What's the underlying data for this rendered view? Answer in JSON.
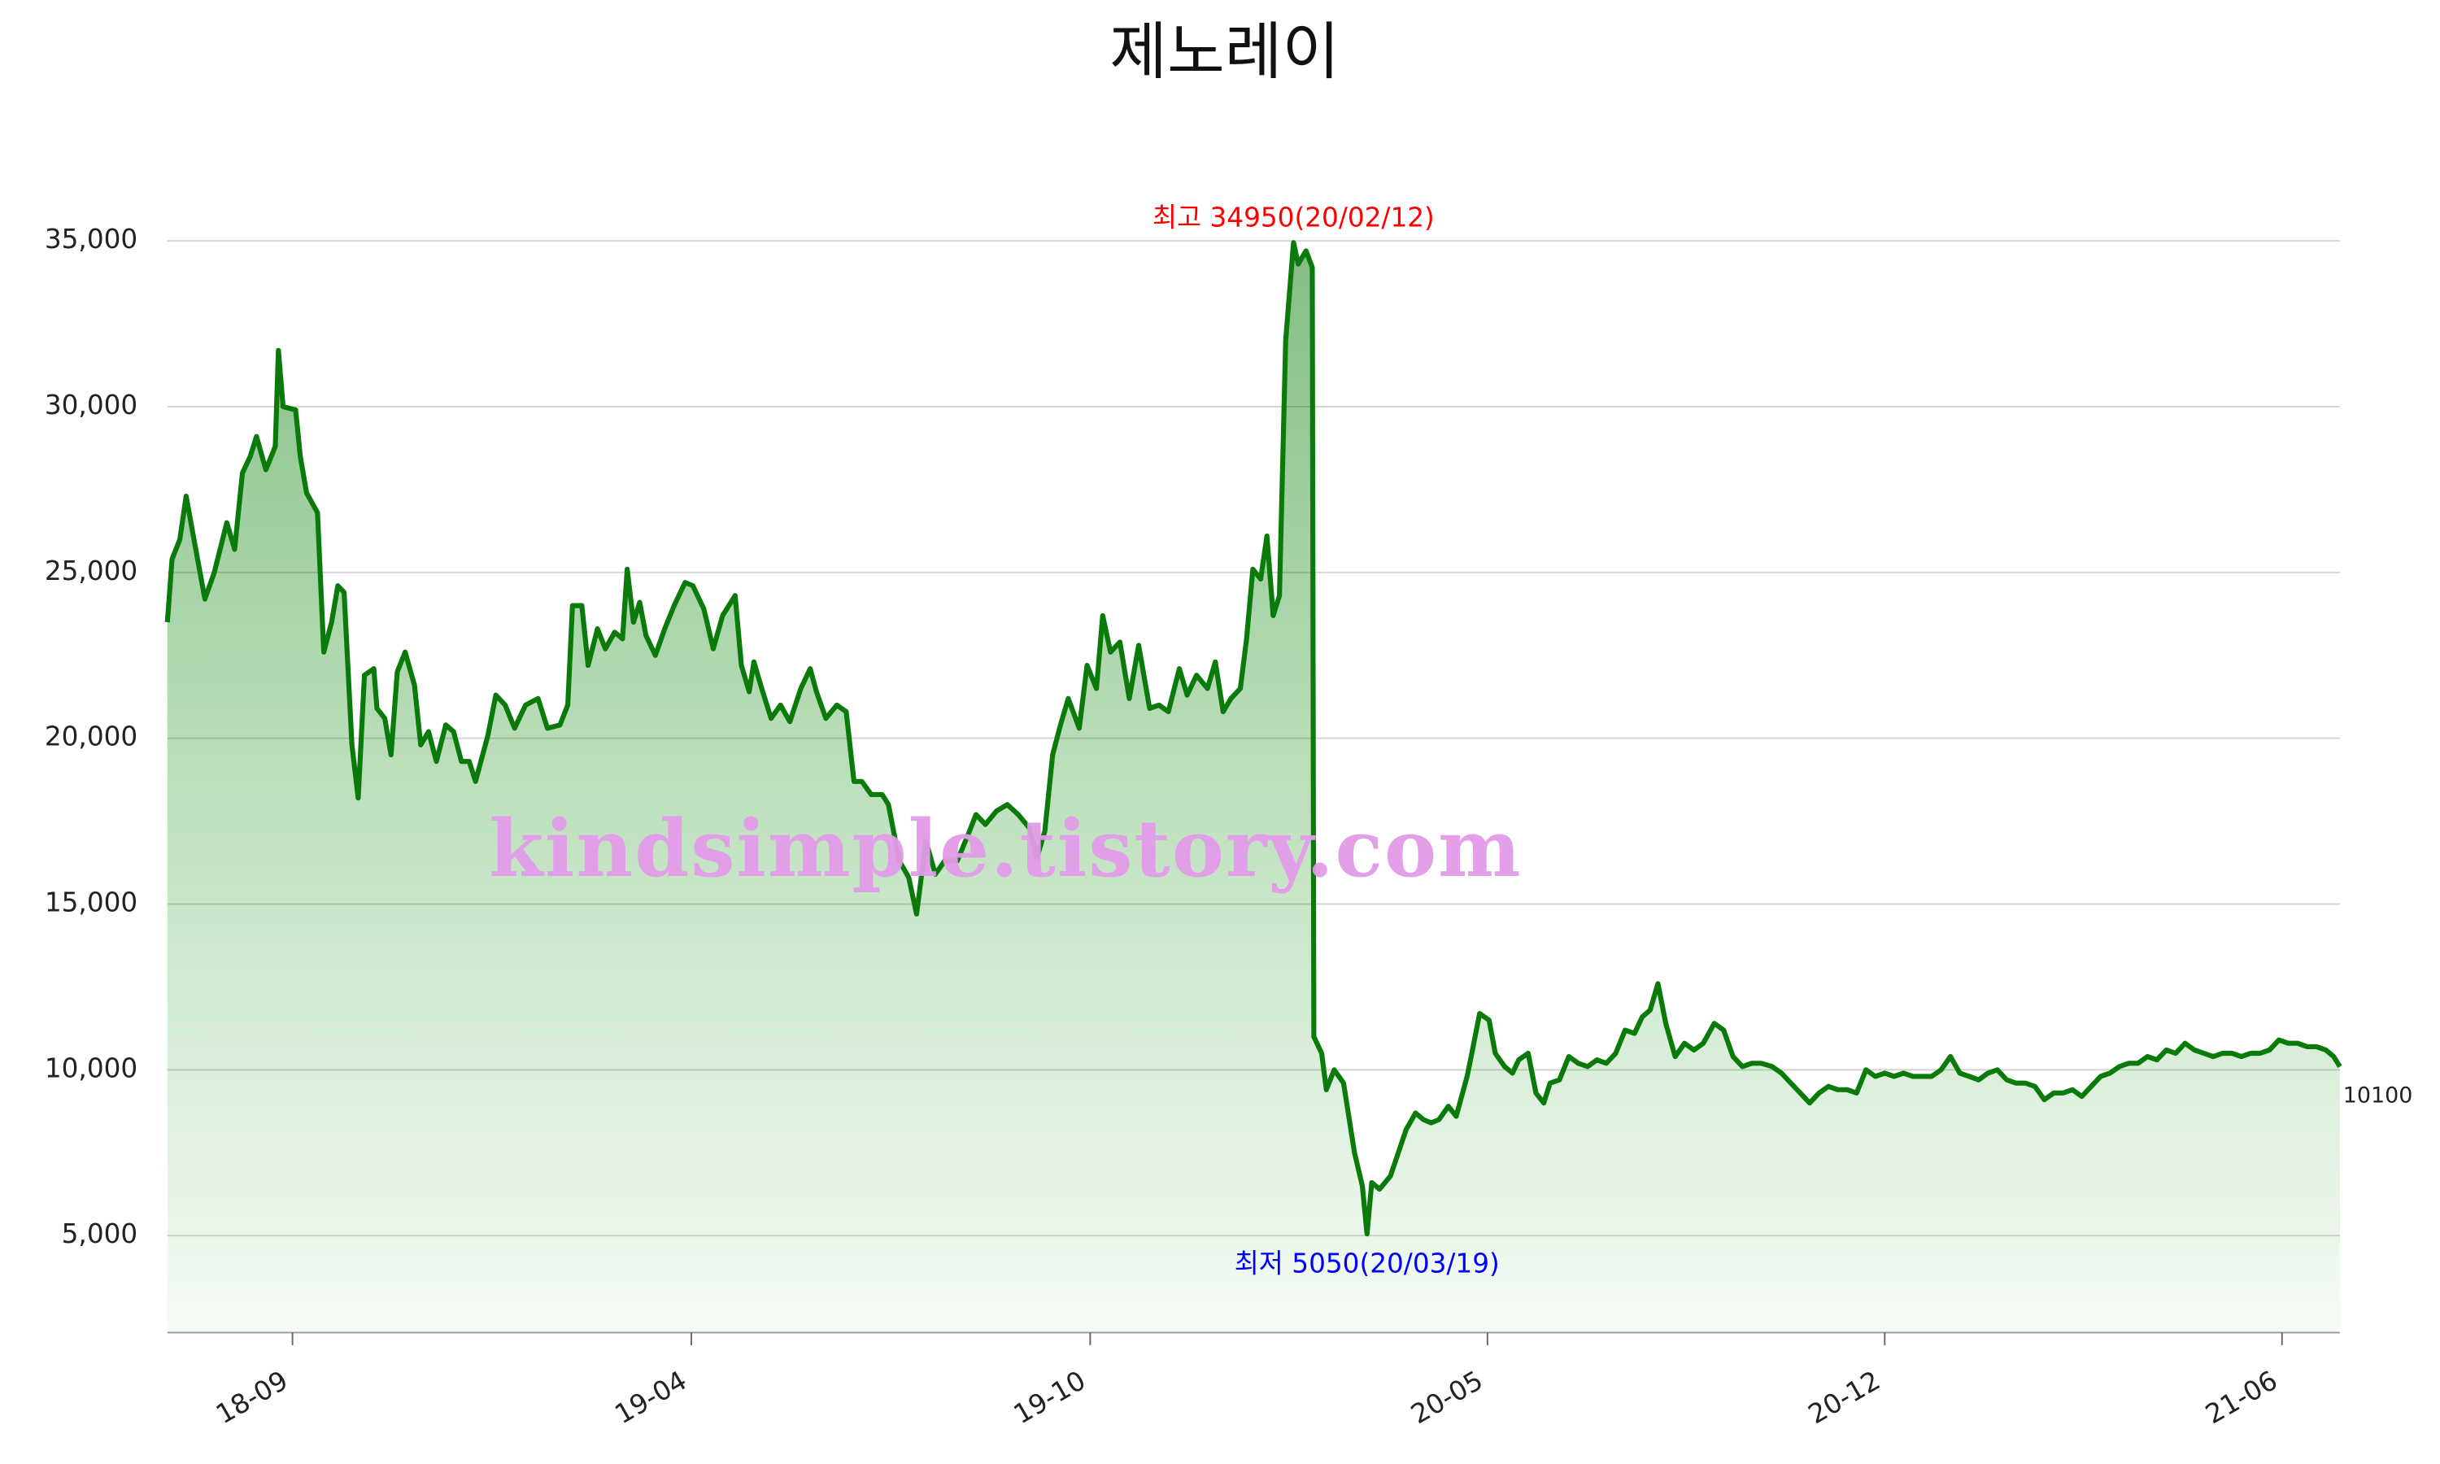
{
  "chart_data": {
    "type": "area-line",
    "title": "제노레이",
    "watermark": "kindsimple.tistory.com",
    "annotations": [
      {
        "text": "최고 34950(20/02/12)",
        "color": "#ff0000",
        "point": 134
      },
      {
        "text": "최저 5050(20/03/19)",
        "color": "#0000ff",
        "point": 145
      }
    ],
    "end_label": true,
    "xlim": [
      0,
      1389
    ],
    "xticks": [
      {
        "value": 80,
        "label": "18-09"
      },
      {
        "value": 335,
        "label": "19-04"
      },
      {
        "value": 590,
        "label": "19-10"
      },
      {
        "value": 844,
        "label": "20-05"
      },
      {
        "value": 1098,
        "label": "20-12"
      },
      {
        "value": 1352,
        "label": "21-06"
      }
    ],
    "ylim": [
      2075,
      37000
    ],
    "yticks": [
      {
        "value": 5000,
        "label": "5,000"
      },
      {
        "value": 10000,
        "label": "10,000"
      },
      {
        "value": 15000,
        "label": "15,000"
      },
      {
        "value": 20000,
        "label": "20,000"
      },
      {
        "value": 25000,
        "label": "25,000"
      },
      {
        "value": 30000,
        "label": "30,000"
      },
      {
        "value": 35000,
        "label": "35,000"
      }
    ],
    "grid": true,
    "x": [
      0,
      3,
      8,
      12,
      17,
      24,
      30,
      38,
      43,
      48,
      53,
      57,
      63,
      69,
      71,
      74,
      82,
      85,
      89,
      96,
      100,
      105,
      109,
      113,
      118,
      122,
      126,
      132,
      134,
      139,
      143,
      147,
      152,
      158,
      162,
      167,
      172,
      178,
      183,
      188,
      193,
      197,
      205,
      210,
      216,
      222,
      229,
      237,
      243,
      251,
      256,
      259,
      265,
      269,
      275,
      280,
      286,
      291,
      294,
      298,
      302,
      306,
      312,
      318,
      324,
      331,
      336,
      343,
      349,
      355,
      363,
      367,
      372,
      375,
      380,
      386,
      392,
      398,
      405,
      411,
      415,
      421,
      428,
      434,
      439,
      444,
      450,
      457,
      461,
      468,
      474,
      479,
      485,
      491,
      497,
      505,
      512,
      517,
      523,
      530,
      537,
      544,
      551,
      556,
      561,
      566,
      571,
      576,
      583,
      588,
      594,
      598,
      603,
      609,
      615,
      621,
      628,
      634,
      640,
      647,
      652,
      658,
      665,
      670,
      675,
      680,
      686,
      690,
      694,
      699,
      703,
      707,
      711,
      715,
      720,
      723,
      728,
      732,
      733,
      738,
      741,
      746,
      752,
      759,
      764,
      767,
      770,
      775,
      782,
      787,
      792,
      798,
      803,
      808,
      813,
      819,
      824,
      831,
      834,
      839,
      845,
      849,
      855,
      860,
      864,
      870,
      875,
      880,
      884,
      890,
      896,
      902,
      908,
      914,
      920,
      926,
      932,
      938,
      943,
      948,
      953,
      958,
      964,
      970,
      976,
      982,
      989,
      995,
      1001,
      1007,
      1013,
      1019,
      1026,
      1032,
      1038,
      1044,
      1050,
      1056,
      1062,
      1068,
      1074,
      1080,
      1086,
      1092,
      1098,
      1104,
      1110,
      1116,
      1122,
      1128,
      1134,
      1140,
      1146,
      1152,
      1158,
      1164,
      1170,
      1176,
      1182,
      1188,
      1194,
      1200,
      1206,
      1212,
      1218,
      1224,
      1230,
      1236,
      1242,
      1248,
      1254,
      1260,
      1266,
      1272,
      1278,
      1284,
      1290,
      1296,
      1302,
      1308,
      1314,
      1320,
      1326,
      1332,
      1338,
      1344,
      1350,
      1356,
      1362,
      1368,
      1374,
      1380,
      1385,
      1389
    ],
    "series": [
      {
        "color": "#0a7a0a",
        "values": [
          23500,
          25400,
          26000,
          27300,
          26000,
          24200,
          25000,
          26500,
          25700,
          28000,
          28500,
          29100,
          28100,
          28800,
          31700,
          30000,
          29900,
          28500,
          27400,
          26800,
          22600,
          23500,
          24600,
          24400,
          19800,
          18200,
          21900,
          22100,
          20900,
          20600,
          19500,
          22000,
          22600,
          21600,
          19800,
          20200,
          19300,
          20400,
          20200,
          19300,
          19300,
          18700,
          20100,
          21300,
          21000,
          20300,
          21000,
          21200,
          20300,
          20400,
          21000,
          24000,
          24000,
          22200,
          23300,
          22700,
          23200,
          23000,
          25100,
          23500,
          24100,
          23100,
          22500,
          23300,
          24000,
          24700,
          24600,
          23900,
          22700,
          23700,
          24300,
          22200,
          21400,
          22300,
          21500,
          20600,
          21000,
          20500,
          21500,
          22100,
          21400,
          20600,
          21000,
          20800,
          18700,
          18700,
          18300,
          18300,
          18000,
          16300,
          15800,
          14700,
          16900,
          15900,
          16300,
          16300,
          17100,
          17700,
          17400,
          17800,
          18000,
          17700,
          17300,
          16400,
          17200,
          19500,
          20400,
          21200,
          20300,
          22200,
          21500,
          23700,
          22600,
          22900,
          21200,
          22800,
          20900,
          21000,
          20800,
          22100,
          21300,
          21900,
          21500,
          22300,
          20800,
          21200,
          21500,
          23000,
          25100,
          24800,
          26100,
          23700,
          24300,
          32000,
          34950,
          34300,
          34700,
          34200,
          11000,
          10500,
          9400,
          10000,
          9600,
          7500,
          6500,
          5050,
          6600,
          6400,
          6800,
          7500,
          8200,
          8700,
          8500,
          8400,
          8500,
          8900,
          8600,
          9800,
          10500,
          11700,
          11500,
          10500,
          10100,
          9900,
          10300,
          10500,
          9300,
          9000,
          9600,
          9700,
          10400,
          10200,
          10100,
          10300,
          10200,
          10500,
          11200,
          11100,
          11600,
          11800,
          12600,
          11400,
          10400,
          10800,
          10600,
          10800,
          11400,
          11200,
          10400,
          10100,
          10200,
          10200,
          10100,
          9900,
          9600,
          9300,
          9000,
          9300,
          9500,
          9400,
          9400,
          9300,
          10000,
          9800,
          9900,
          9800,
          9900,
          9800,
          9800,
          9800,
          10000,
          10400,
          9900,
          9800,
          9700,
          9900,
          10000,
          9700,
          9600,
          9600,
          9500,
          9100,
          9300,
          9300,
          9400,
          9200,
          9500,
          9800,
          9900,
          10100,
          10200,
          10200,
          10400,
          10300,
          10600,
          10500,
          10800,
          10600,
          10500,
          10400,
          10500,
          10500,
          10400,
          10500,
          10500,
          10600,
          10900,
          10800,
          10800,
          10700,
          10700,
          10600,
          10400,
          10100
        ]
      }
    ]
  }
}
